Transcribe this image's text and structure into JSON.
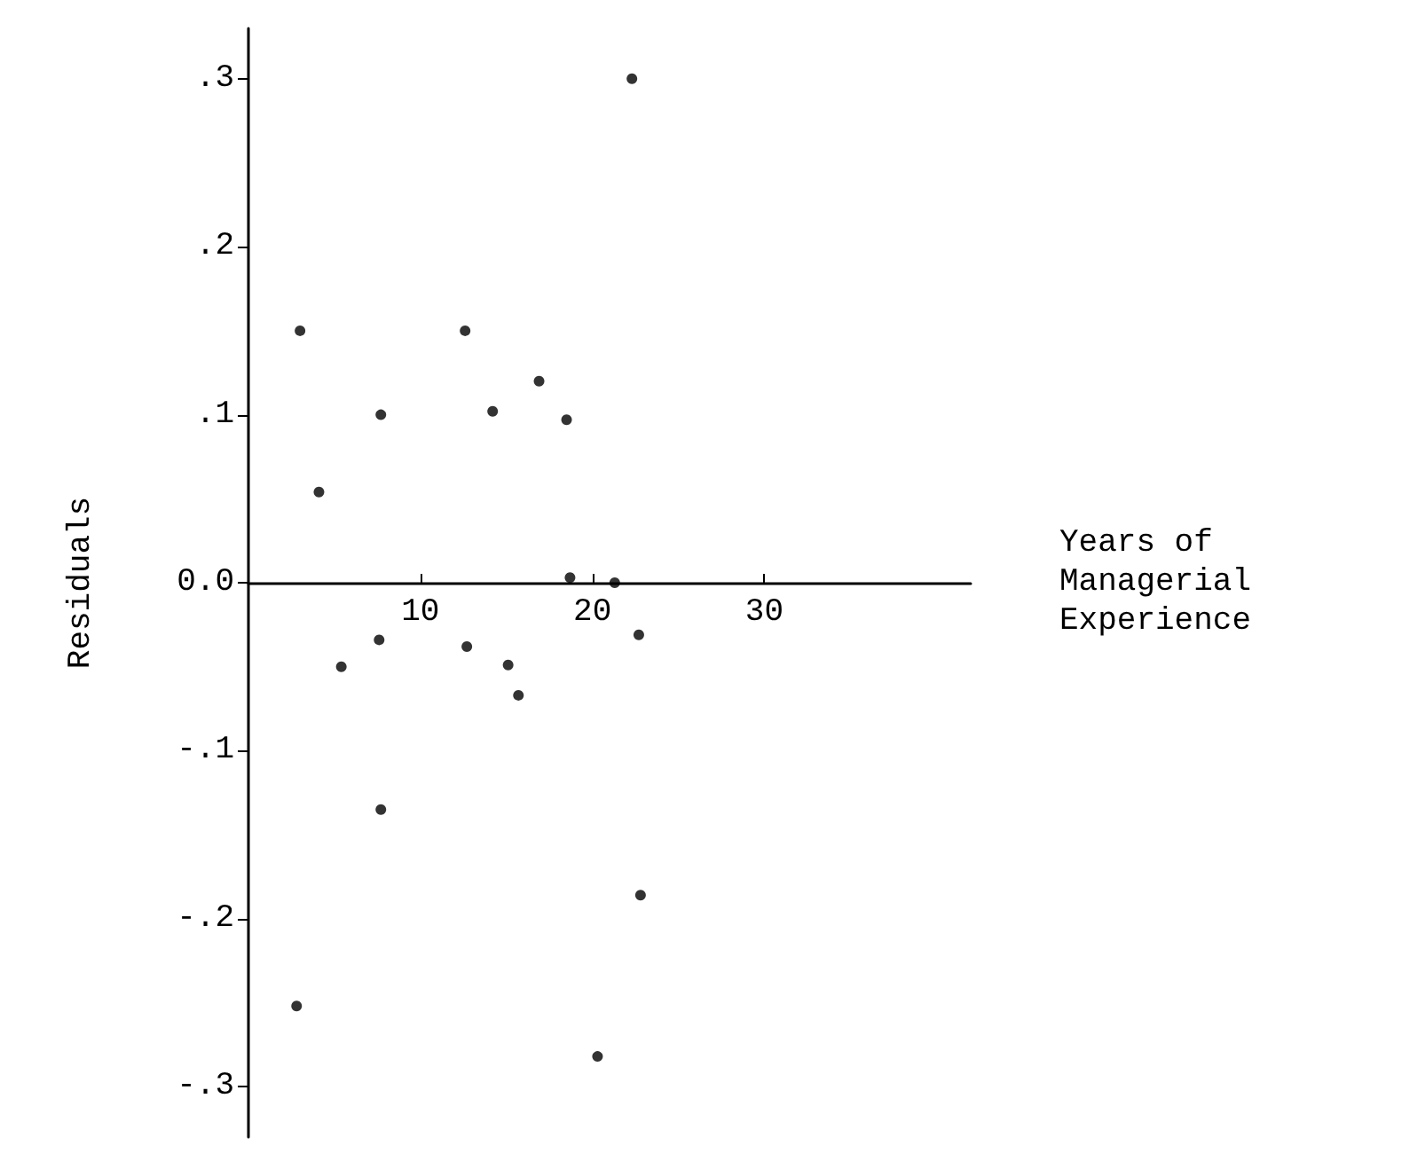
{
  "chart_data": {
    "type": "scatter",
    "xlabel": "Years of\nManagerial\nExperience",
    "ylabel": "Residuals",
    "x": [
      3.0,
      4.1,
      7.7,
      12.6,
      14.2,
      16.9,
      18.5,
      18.7,
      21.3,
      22.3,
      7.6,
      5.4,
      12.7,
      15.1,
      15.7,
      22.7,
      7.7,
      22.8,
      2.8,
      20.3
    ],
    "values": [
      0.15,
      0.054,
      0.1,
      0.15,
      0.102,
      0.12,
      0.097,
      0.003,
      0.0,
      0.3,
      -0.034,
      -0.05,
      -0.038,
      -0.049,
      -0.067,
      -0.031,
      -0.135,
      -0.186,
      -0.252,
      -0.282
    ],
    "color": "#000000",
    "marker": "circle",
    "xlim": [
      0,
      42
    ],
    "xticks": [
      10,
      20,
      30
    ],
    "ylim": [
      -0.33,
      0.33
    ],
    "yticks": [
      {
        "value": -0.3,
        "label": "-.3"
      },
      {
        "value": -0.2,
        "label": "-.2"
      },
      {
        "value": -0.1,
        "label": "-.1"
      },
      {
        "value": 0,
        "label": "0.0"
      },
      {
        "value": 0.1,
        "label": ".1"
      },
      {
        "value": 0.2,
        "label": ".2"
      },
      {
        "value": 0.3,
        "label": ".3"
      }
    ],
    "grid": false
  }
}
